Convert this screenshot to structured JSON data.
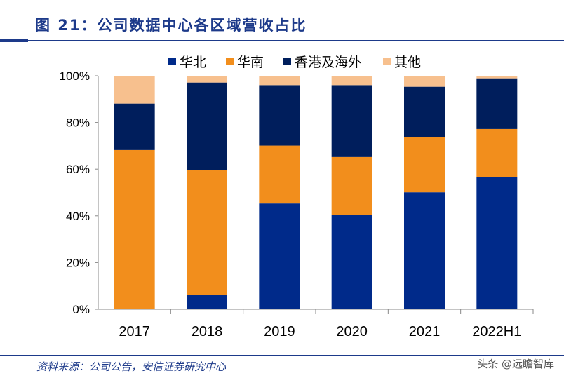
{
  "title": "图 21：公司数据中心各区域营收占比",
  "source": "资料来源：公司公告，安信证券研究中心",
  "watermark": "头条 @远瞻智库",
  "chart_data": {
    "type": "bar",
    "stacked": true,
    "categories": [
      "2017",
      "2018",
      "2019",
      "2020",
      "2021",
      "2022H1"
    ],
    "series": [
      {
        "name": "华北",
        "color": "#002a8a",
        "values": [
          0,
          6.1,
          45.3,
          40.5,
          50.1,
          56.7
        ]
      },
      {
        "name": "华南",
        "color": "#f28e1c",
        "values": [
          68.2,
          53.6,
          24.8,
          24.7,
          23.5,
          20.5
        ]
      },
      {
        "name": "香港及海外",
        "color": "#001e5c",
        "values": [
          19.9,
          37.4,
          25.9,
          30.8,
          21.7,
          21.7
        ]
      },
      {
        "name": "其他",
        "color": "#f7c08e",
        "values": [
          11.9,
          2.9,
          4.0,
          4.0,
          4.7,
          1.1
        ]
      }
    ],
    "yticks": [
      "0%",
      "20%",
      "40%",
      "60%",
      "80%",
      "100%"
    ],
    "ylim": [
      0,
      100
    ],
    "grid": false,
    "legend": "top"
  }
}
